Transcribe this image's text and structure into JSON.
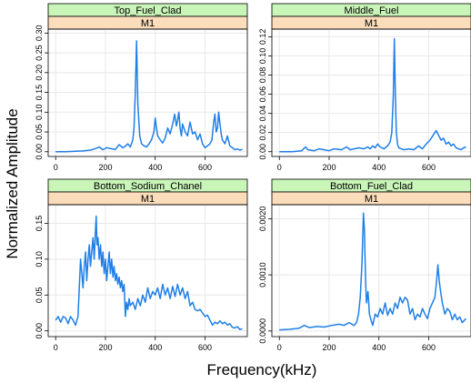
{
  "xlabel": "Frequency(kHz)",
  "ylabel": "Normalized Amplitude",
  "colors": {
    "line": "#1f7fe8",
    "strip_top": "#c9f5b8",
    "strip_bottom": "#fbdcbb",
    "grid": "#e8e8e8",
    "frame": "#000000"
  },
  "chart_data": [
    {
      "type": "line",
      "title": "Top_Fuel_Clad",
      "subtitle": "M1",
      "xlim": [
        -30,
        770
      ],
      "ylim": [
        -0.012,
        0.31
      ],
      "xticks": [
        0,
        200,
        400,
        600
      ],
      "yticks": [
        0.0,
        0.05,
        0.1,
        0.15,
        0.2,
        0.25,
        0.3
      ],
      "ytick_labels": [
        "0.00",
        "0.05",
        "0.10",
        "0.15",
        "0.20",
        "0.25",
        "0.30"
      ],
      "grid": true,
      "series": [
        {
          "x": [
            0,
            40,
            80,
            110,
            140,
            160,
            175,
            190,
            205,
            220,
            240,
            255,
            270,
            280,
            290,
            300,
            310,
            315,
            320,
            325,
            330,
            338,
            345,
            355,
            365,
            375,
            385,
            395,
            400,
            405,
            410,
            420,
            430,
            440,
            450,
            460,
            470,
            478,
            485,
            490,
            495,
            500,
            505,
            510,
            520,
            530,
            540,
            550,
            560,
            570,
            580,
            590,
            600,
            610,
            620,
            628,
            635,
            640,
            645,
            650,
            655,
            660,
            665,
            670,
            680,
            690,
            700,
            710,
            720,
            730,
            740,
            750
          ],
          "y": [
            0.0,
            0.0,
            0.001,
            0.002,
            0.004,
            0.008,
            0.012,
            0.005,
            0.01,
            0.008,
            0.006,
            0.018,
            0.01,
            0.014,
            0.02,
            0.012,
            0.03,
            0.06,
            0.15,
            0.28,
            0.12,
            0.04,
            0.02,
            0.015,
            0.012,
            0.02,
            0.03,
            0.05,
            0.085,
            0.06,
            0.04,
            0.03,
            0.022,
            0.035,
            0.06,
            0.045,
            0.07,
            0.095,
            0.065,
            0.08,
            0.1,
            0.06,
            0.04,
            0.07,
            0.05,
            0.04,
            0.075,
            0.045,
            0.05,
            0.03,
            0.045,
            0.02,
            0.01,
            0.015,
            0.02,
            0.03,
            0.075,
            0.095,
            0.05,
            0.06,
            0.1,
            0.07,
            0.045,
            0.03,
            0.02,
            0.04,
            0.015,
            0.01,
            0.005,
            0.007,
            0.004,
            0.006
          ]
        }
      ]
    },
    {
      "type": "line",
      "title": "Middle_Fuel",
      "subtitle": "M1",
      "xlim": [
        -30,
        770
      ],
      "ylim": [
        -0.005,
        0.128
      ],
      "xticks": [
        0,
        200,
        400,
        600
      ],
      "yticks": [
        0.0,
        0.02,
        0.04,
        0.06,
        0.08,
        0.1,
        0.12
      ],
      "ytick_labels": [
        "0.00",
        "0.02",
        "0.04",
        "0.06",
        "0.08",
        "0.10",
        "0.12"
      ],
      "grid": true,
      "series": [
        {
          "x": [
            0,
            50,
            90,
            105,
            115,
            140,
            160,
            180,
            200,
            220,
            250,
            270,
            285,
            300,
            320,
            340,
            355,
            365,
            375,
            385,
            395,
            405,
            420,
            435,
            445,
            452,
            458,
            462,
            466,
            470,
            475,
            480,
            490,
            500,
            520,
            540,
            560,
            575,
            590,
            605,
            615,
            620,
            630,
            640,
            650,
            660,
            670,
            680,
            690,
            700,
            710,
            720,
            730,
            740,
            750
          ],
          "y": [
            0.0,
            0.0,
            0.001,
            0.005,
            0.002,
            0.001,
            0.003,
            0.002,
            0.001,
            0.003,
            0.002,
            0.005,
            0.002,
            0.003,
            0.004,
            0.003,
            0.005,
            0.003,
            0.006,
            0.004,
            0.008,
            0.005,
            0.003,
            0.006,
            0.01,
            0.02,
            0.06,
            0.118,
            0.06,
            0.02,
            0.008,
            0.004,
            0.003,
            0.002,
            0.003,
            0.002,
            0.006,
            0.003,
            0.008,
            0.012,
            0.016,
            0.018,
            0.022,
            0.017,
            0.012,
            0.014,
            0.008,
            0.01,
            0.006,
            0.008,
            0.004,
            0.003,
            0.002,
            0.004,
            0.005
          ]
        }
      ]
    },
    {
      "type": "line",
      "title": "Bottom_Sodium_Chanel",
      "subtitle": "M1",
      "xlim": [
        -30,
        770
      ],
      "ylim": [
        -0.008,
        0.176
      ],
      "xticks": [
        0,
        200,
        400,
        600
      ],
      "yticks": [
        0.0,
        0.05,
        0.1,
        0.15
      ],
      "ytick_labels": [
        "0.00",
        "0.05",
        "0.10",
        "0.15"
      ],
      "grid": true,
      "series": [
        {
          "x": [
            0,
            10,
            20,
            30,
            40,
            50,
            60,
            70,
            80,
            90,
            95,
            100,
            105,
            110,
            115,
            120,
            125,
            130,
            135,
            140,
            145,
            150,
            155,
            160,
            163,
            166,
            170,
            175,
            180,
            185,
            190,
            195,
            200,
            205,
            210,
            215,
            220,
            225,
            230,
            235,
            240,
            245,
            250,
            255,
            260,
            265,
            270,
            275,
            280,
            285,
            290,
            295,
            300,
            310,
            320,
            330,
            340,
            350,
            360,
            370,
            380,
            390,
            400,
            410,
            420,
            430,
            440,
            450,
            460,
            470,
            480,
            490,
            500,
            510,
            520,
            530,
            540,
            550,
            560,
            570,
            580,
            590,
            600,
            610,
            620,
            630,
            640,
            650,
            660,
            670,
            680,
            690,
            700,
            710,
            720,
            730,
            740,
            750
          ],
          "y": [
            0.015,
            0.02,
            0.012,
            0.02,
            0.018,
            0.01,
            0.02,
            0.015,
            0.008,
            0.02,
            0.06,
            0.1,
            0.08,
            0.06,
            0.09,
            0.11,
            0.07,
            0.1,
            0.12,
            0.09,
            0.11,
            0.13,
            0.1,
            0.14,
            0.16,
            0.12,
            0.13,
            0.1,
            0.12,
            0.09,
            0.11,
            0.08,
            0.1,
            0.07,
            0.09,
            0.11,
            0.08,
            0.1,
            0.075,
            0.09,
            0.07,
            0.08,
            0.065,
            0.075,
            0.06,
            0.07,
            0.055,
            0.065,
            0.02,
            0.04,
            0.03,
            0.045,
            0.035,
            0.04,
            0.03,
            0.045,
            0.035,
            0.05,
            0.04,
            0.06,
            0.045,
            0.055,
            0.05,
            0.06,
            0.045,
            0.065,
            0.05,
            0.06,
            0.045,
            0.062,
            0.048,
            0.065,
            0.05,
            0.06,
            0.045,
            0.055,
            0.035,
            0.04,
            0.03,
            0.028,
            0.03,
            0.025,
            0.02,
            0.022,
            0.015,
            0.008,
            0.012,
            0.01,
            0.014,
            0.01,
            0.012,
            0.008,
            0.01,
            0.005,
            0.004,
            0.006,
            0.002,
            0.003
          ]
        }
      ]
    },
    {
      "type": "line",
      "title": "Bottom_Fuel_Clad",
      "subtitle": "M1",
      "xlim": [
        -30,
        770
      ],
      "ylim": [
        -0.0001,
        0.00225
      ],
      "xticks": [
        0,
        200,
        400,
        600
      ],
      "yticks": [
        0.0,
        0.001,
        0.002
      ],
      "ytick_labels": [
        "0.0000",
        "0.0010",
        "0.0020"
      ],
      "grid": true,
      "series": [
        {
          "x": [
            0,
            40,
            80,
            100,
            120,
            150,
            180,
            210,
            240,
            260,
            280,
            300,
            310,
            318,
            325,
            332,
            338,
            342,
            346,
            350,
            356,
            362,
            368,
            375,
            385,
            395,
            405,
            415,
            425,
            435,
            445,
            455,
            465,
            475,
            485,
            495,
            505,
            515,
            525,
            535,
            545,
            555,
            565,
            575,
            585,
            595,
            605,
            615,
            625,
            632,
            637,
            642,
            648,
            655,
            665,
            675,
            685,
            695,
            705,
            715,
            725,
            735,
            745,
            750
          ],
          "y": [
            2e-05,
            3e-05,
            5e-05,
            0.0001,
            6e-05,
            8e-05,
            7e-05,
            0.0001,
            0.00012,
            0.0001,
            0.00015,
            0.0001,
            0.00015,
            0.0003,
            0.0006,
            0.0012,
            0.0021,
            0.0018,
            0.001,
            0.0005,
            0.0007,
            0.0003,
            0.0002,
            0.0001,
            0.0003,
            0.00025,
            0.0004,
            0.0003,
            0.0005,
            0.00028,
            0.0004,
            0.0003,
            0.0005,
            0.0004,
            0.0006,
            0.0005,
            0.0006,
            0.00055,
            0.0003,
            0.0004,
            0.0002,
            0.0003,
            0.00025,
            0.0004,
            0.0003,
            0.00022,
            0.0004,
            0.0005,
            0.0006,
            0.0009,
            0.00118,
            0.0009,
            0.0007,
            0.0005,
            0.0003,
            0.0004,
            0.00035,
            0.0002,
            0.0003,
            0.0002,
            0.00025,
            0.00015,
            0.0002,
            0.00022
          ]
        }
      ]
    }
  ]
}
